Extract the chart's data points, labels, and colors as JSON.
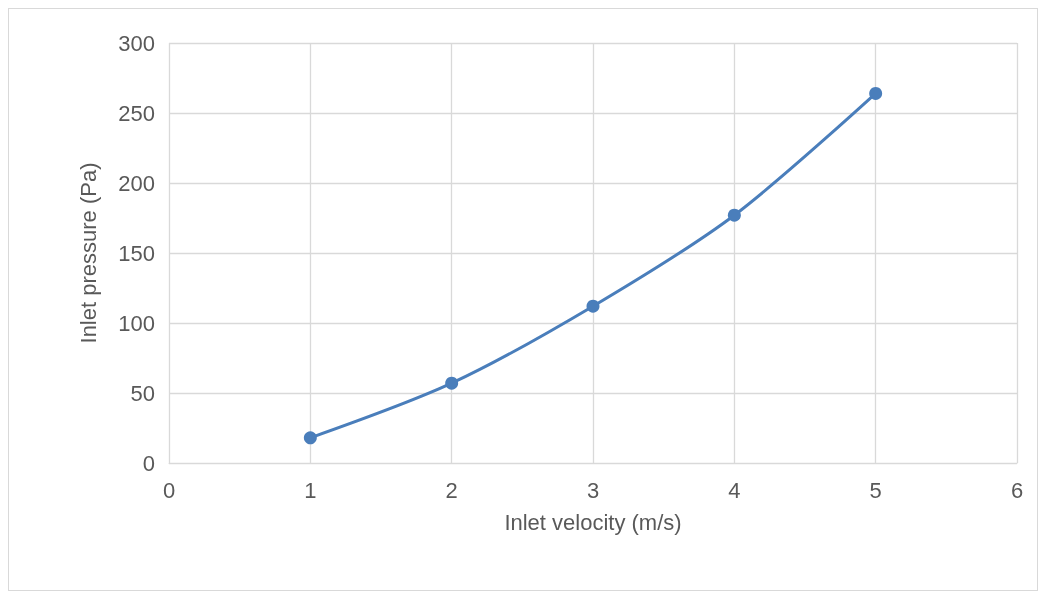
{
  "chart_data": {
    "type": "line",
    "xlabel": "Inlet velocity (m/s)",
    "ylabel": "Inlet pressure (Pa)",
    "x": [
      1,
      2,
      3,
      4,
      5
    ],
    "series": [
      {
        "color": "#4a7ebb",
        "values": [
          18,
          57,
          112,
          177,
          264
        ]
      }
    ],
    "xlim": [
      0,
      6
    ],
    "xticks": [
      0,
      1,
      2,
      3,
      4,
      5,
      6
    ],
    "ylim": [
      0,
      300
    ],
    "yticks": [
      0,
      50,
      100,
      150,
      200,
      250,
      300
    ],
    "grid": true,
    "marker": "circle",
    "line_style": "solid"
  }
}
